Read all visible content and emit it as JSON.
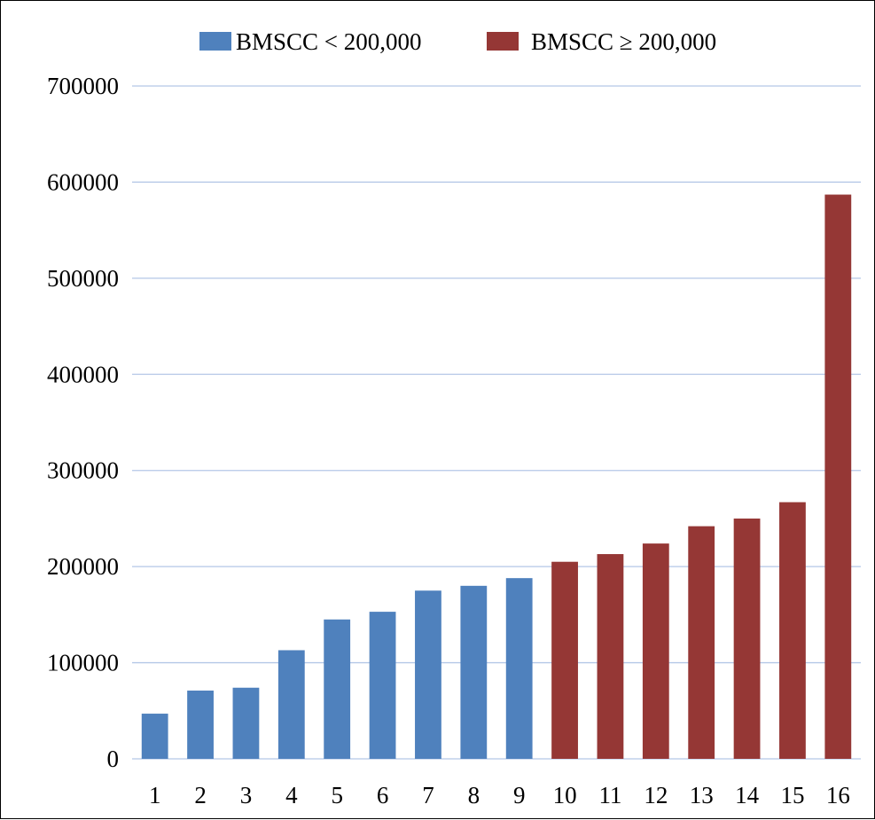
{
  "chart_data": {
    "type": "bar",
    "categories": [
      "1",
      "2",
      "3",
      "4",
      "5",
      "6",
      "7",
      "8",
      "9",
      "10",
      "11",
      "12",
      "13",
      "14",
      "15",
      "16"
    ],
    "series": [
      {
        "name": "BMSCC < 200,000",
        "color": "#4f81bd",
        "values": [
          47000,
          71000,
          74000,
          113000,
          145000,
          153000,
          175000,
          180000,
          188000,
          null,
          null,
          null,
          null,
          null,
          null,
          null
        ]
      },
      {
        "name": "BMSCC ≥ 200,000",
        "color": "#953735",
        "values": [
          null,
          null,
          null,
          null,
          null,
          null,
          null,
          null,
          null,
          205000,
          213000,
          224000,
          242000,
          250000,
          267000,
          587000
        ]
      }
    ],
    "yticks": [
      "0",
      "100000",
      "200000",
      "300000",
      "400000",
      "500000",
      "600000",
      "700000"
    ],
    "ylim": [
      0,
      700000
    ],
    "grid": true,
    "legend_position": "top-center",
    "title": "",
    "xlabel": "",
    "ylabel": ""
  }
}
